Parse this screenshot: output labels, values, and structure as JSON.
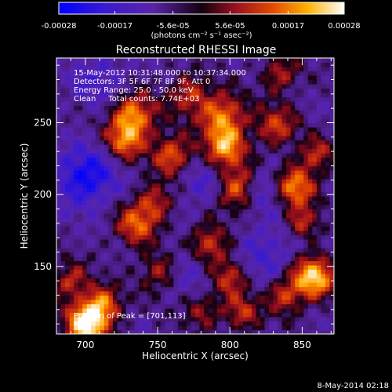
{
  "chart_data": {
    "type": "heatmap",
    "title": "Reconstructed RHESSI Image",
    "xlabel": "Heliocentric X (arcsec)",
    "ylabel": "Heliocentric Y (arcsec)",
    "xlim": [
      680,
      872
    ],
    "ylim": [
      103,
      295
    ],
    "x_ticks": [
      700,
      750,
      800,
      850
    ],
    "y_ticks": [
      150,
      200,
      250
    ],
    "colorbar": {
      "ticks": [
        "-0.00028",
        "-0.00017",
        "-5.6e-05",
        "5.6e-05",
        "0.00017",
        "0.00028"
      ],
      "tick_values": [
        -0.00028,
        -0.00017,
        -5.6e-05,
        5.6e-05,
        0.00017,
        0.00028
      ],
      "range": [
        -0.00028,
        0.00028
      ],
      "units": "(photons cm⁻² s⁻¹ asec⁻²)"
    },
    "annotations": [
      "15-May-2012 10:31:48.000 to 10:37:34.000",
      "Detectors: 3F 5F 6F 7F 8F 9F, Att 0",
      "Energy Range: 25.0 - 50.0 keV",
      "Clean     Total counts: 7.74E+03"
    ],
    "peak_label": "Position of Peak = [701,113]",
    "peak": [
      701,
      113
    ],
    "sources": [
      {
        "x": 701,
        "y": 110,
        "amp": 1.25,
        "r": 10
      },
      {
        "x": 712,
        "y": 124,
        "amp": 0.75,
        "r": 9
      },
      {
        "x": 733,
        "y": 255,
        "amp": 0.9,
        "r": 11
      },
      {
        "x": 727,
        "y": 237,
        "amp": 0.7,
        "r": 9
      },
      {
        "x": 735,
        "y": 179,
        "amp": 0.7,
        "r": 10
      },
      {
        "x": 748,
        "y": 195,
        "amp": 0.55,
        "r": 9
      },
      {
        "x": 760,
        "y": 228,
        "amp": 0.7,
        "r": 10
      },
      {
        "x": 752,
        "y": 147,
        "amp": 0.55,
        "r": 10
      },
      {
        "x": 795,
        "y": 255,
        "amp": 0.8,
        "r": 11
      },
      {
        "x": 797,
        "y": 233,
        "amp": 0.85,
        "r": 10
      },
      {
        "x": 806,
        "y": 205,
        "amp": 0.75,
        "r": 10
      },
      {
        "x": 785,
        "y": 165,
        "amp": 0.75,
        "r": 10
      },
      {
        "x": 800,
        "y": 143,
        "amp": 0.6,
        "r": 9
      },
      {
        "x": 808,
        "y": 118,
        "amp": 0.55,
        "r": 9
      },
      {
        "x": 832,
        "y": 248,
        "amp": 0.6,
        "r": 10
      },
      {
        "x": 845,
        "y": 206,
        "amp": 0.9,
        "r": 10
      },
      {
        "x": 850,
        "y": 180,
        "amp": 0.55,
        "r": 8
      },
      {
        "x": 858,
        "y": 143,
        "amp": 1.1,
        "r": 10
      },
      {
        "x": 838,
        "y": 130,
        "amp": 0.6,
        "r": 9
      },
      {
        "x": 860,
        "y": 228,
        "amp": 0.55,
        "r": 8
      },
      {
        "x": 690,
        "y": 140,
        "amp": 0.55,
        "r": 9
      },
      {
        "x": 772,
        "y": 270,
        "amp": 0.55,
        "r": 10
      },
      {
        "x": 835,
        "y": 284,
        "amp": 0.5,
        "r": 9
      },
      {
        "x": 780,
        "y": 120,
        "amp": 0.45,
        "r": 9
      },
      {
        "x": 700,
        "y": 212,
        "amp": -0.7,
        "r": 14
      },
      {
        "x": 772,
        "y": 150,
        "amp": -0.35,
        "r": 14
      },
      {
        "x": 825,
        "y": 160,
        "amp": -0.35,
        "r": 14
      },
      {
        "x": 824,
        "y": 205,
        "amp": -0.45,
        "r": 10
      },
      {
        "x": 710,
        "y": 280,
        "amp": -0.3,
        "r": 14
      },
      {
        "x": 780,
        "y": 208,
        "amp": -0.35,
        "r": 10
      }
    ]
  },
  "footer": {
    "timestamp": "8-May-2014 02:18"
  }
}
